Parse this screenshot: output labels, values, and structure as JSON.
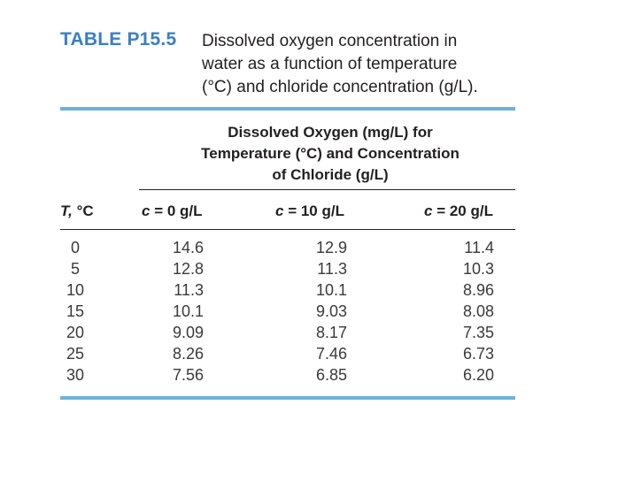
{
  "table": {
    "label": "TABLE P15.5",
    "caption_lines": [
      "Dissolved oxygen concentration in",
      "water as a function of temperature",
      "(°C) and chloride concentration (g/L)."
    ],
    "spanner_lines": [
      "Dissolved Oxygen (mg/L) for",
      "Temperature (°C) and Concentration",
      "of Chloride (g/L)"
    ],
    "columns": [
      {
        "var": "T,",
        "rest": " °C"
      },
      {
        "var": "c",
        "rest": " = 0 g/L"
      },
      {
        "var": "c",
        "rest": " = 10 g/L"
      },
      {
        "var": "c",
        "rest": " = 20 g/L"
      }
    ],
    "rows": [
      [
        "0",
        "14.6",
        "12.9",
        "11.4"
      ],
      [
        "5",
        "12.8",
        "11.3",
        "10.3"
      ],
      [
        "10",
        "11.3",
        "10.1",
        "8.96"
      ],
      [
        "15",
        "10.1",
        "9.03",
        "8.08"
      ],
      [
        "20",
        "9.09",
        "8.17",
        "7.35"
      ],
      [
        "25",
        "8.26",
        "7.46",
        "6.73"
      ],
      [
        "30",
        "7.56",
        "6.85",
        "6.20"
      ]
    ]
  },
  "colors": {
    "label": "#3b7fbf",
    "rule": "#6fb1dd",
    "text": "#231f20"
  }
}
